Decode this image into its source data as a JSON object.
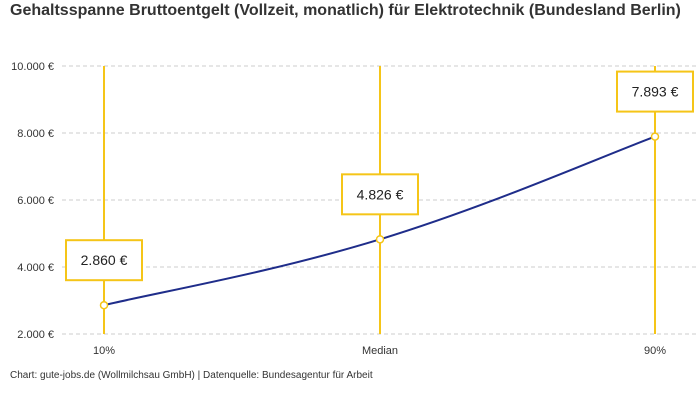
{
  "title": "Gehaltsspanne Bruttoentgelt (Vollzeit, monatlich) für Elektrotechnik (Bundesland Berlin)",
  "source": "Chart: gute-jobs.de (Wollmilchsau GmbH) | Datenquelle: Bundesagentur für Arbeit",
  "colors": {
    "line": "#1f2d8a",
    "accent": "#f5c518",
    "grid": "#cccccc",
    "text": "#333333"
  },
  "chart_data": {
    "type": "line",
    "title": "Gehaltsspanne Bruttoentgelt (Vollzeit, monatlich) für Elektrotechnik (Bundesland Berlin)",
    "categories": [
      "10%",
      "Median",
      "90%"
    ],
    "values": [
      2860,
      4826,
      7893
    ],
    "value_labels": [
      "2.860 €",
      "4.826 €",
      "7.893 €"
    ],
    "yticks": [
      2000,
      4000,
      6000,
      8000,
      10000
    ],
    "ytick_labels": [
      "2.000 €",
      "4.000 €",
      "6.000 €",
      "8.000 €",
      "10.000 €"
    ],
    "ylim": [
      2000,
      10000
    ],
    "xlabel": "",
    "ylabel": "",
    "grid": true,
    "legend": "none"
  }
}
